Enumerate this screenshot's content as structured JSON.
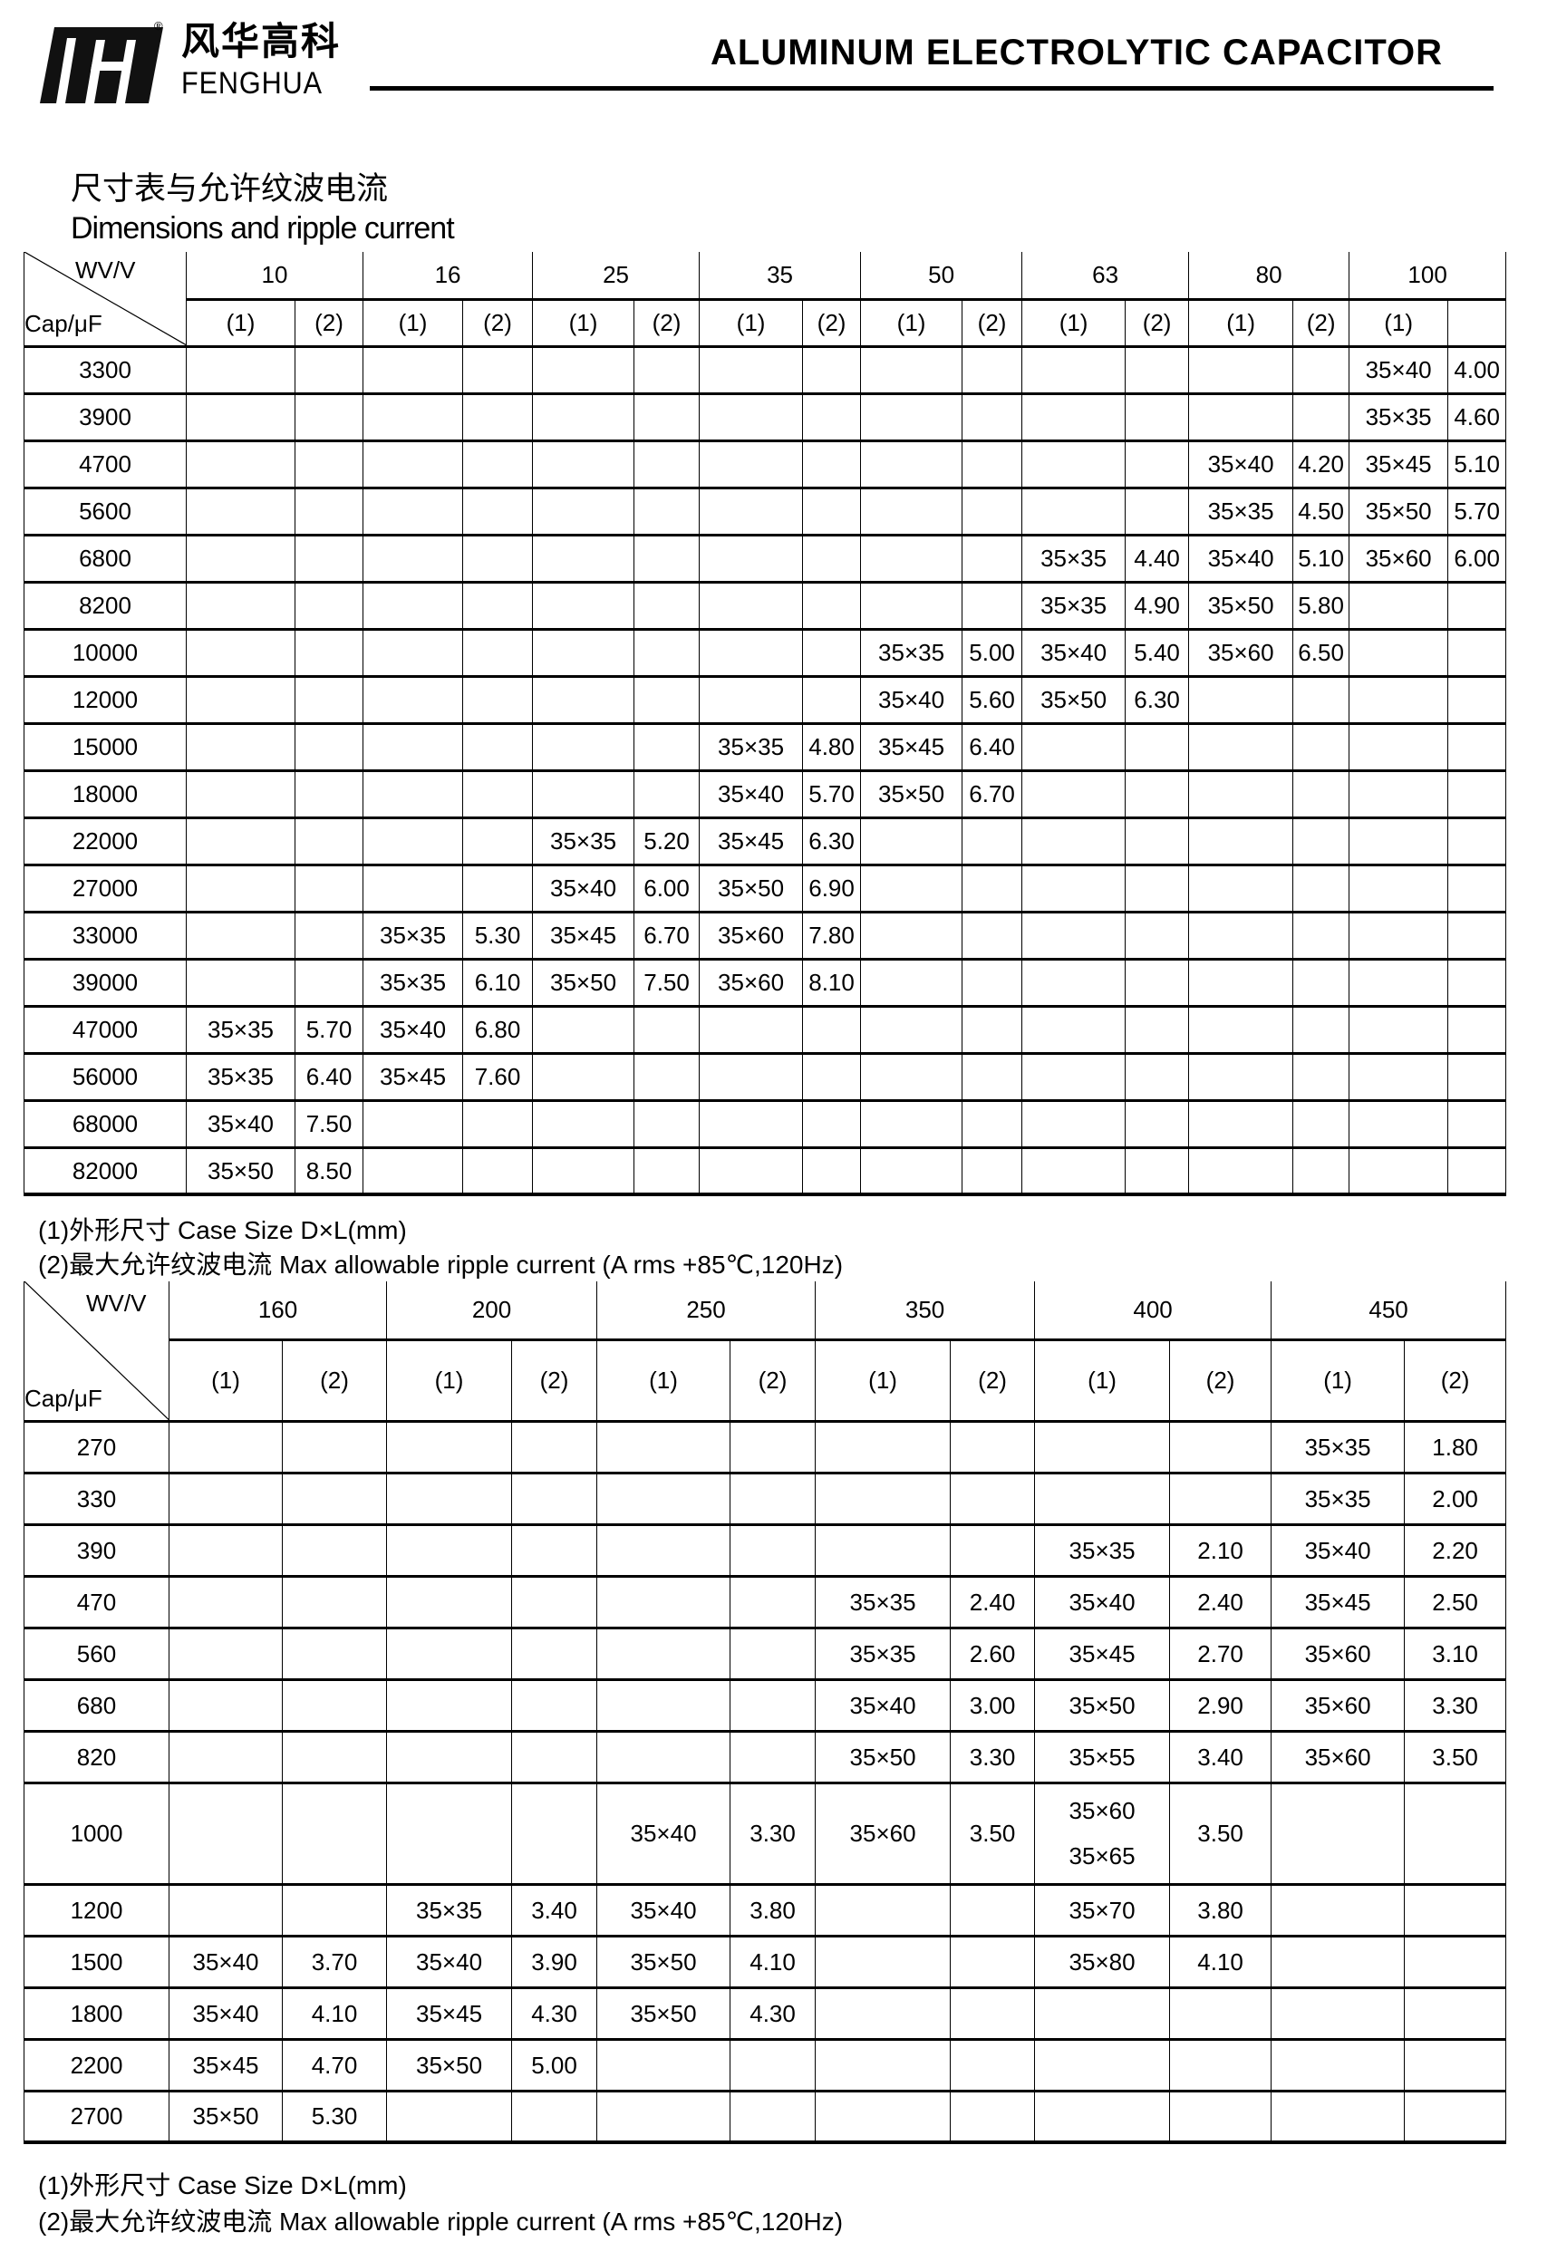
{
  "header": {
    "brand_cn": "风华高科",
    "brand_en": "FENGHUA",
    "registered_mark": "®",
    "title": "ALUMINUM ELECTROLYTIC CAPACITOR"
  },
  "section": {
    "title_cn": "尺寸表与允许纹波电流",
    "title_en": "Dimensions and ripple current"
  },
  "table1": {
    "corner_top": "WV/V",
    "corner_bottom": "Cap/μF",
    "voltages": [
      "10",
      "16",
      "25",
      "35",
      "50",
      "63",
      "80",
      "100"
    ],
    "subheaders": [
      "(1)",
      "(2)",
      "(1)",
      "(2)",
      "(1)",
      "(2)",
      "(1)",
      "(2)",
      "(1)",
      "(2)",
      "(1)",
      "(2)",
      "(1)",
      "(2)",
      "(1)",
      ""
    ],
    "rows": [
      {
        "cap": "3300",
        "cells": [
          "",
          "",
          "",
          "",
          "",
          "",
          "",
          "",
          "",
          "",
          "",
          "",
          "",
          "",
          "35×40",
          "4.00"
        ]
      },
      {
        "cap": "3900",
        "cells": [
          "",
          "",
          "",
          "",
          "",
          "",
          "",
          "",
          "",
          "",
          "",
          "",
          "",
          "",
          "35×35",
          "4.60"
        ]
      },
      {
        "cap": "4700",
        "cells": [
          "",
          "",
          "",
          "",
          "",
          "",
          "",
          "",
          "",
          "",
          "",
          "",
          "35×40",
          "4.20",
          "35×45",
          "5.10"
        ]
      },
      {
        "cap": "5600",
        "cells": [
          "",
          "",
          "",
          "",
          "",
          "",
          "",
          "",
          "",
          "",
          "",
          "",
          "35×35",
          "4.50",
          "35×50",
          "5.70"
        ]
      },
      {
        "cap": "6800",
        "cells": [
          "",
          "",
          "",
          "",
          "",
          "",
          "",
          "",
          "",
          "",
          "35×35",
          "4.40",
          "35×40",
          "5.10",
          "35×60",
          "6.00"
        ]
      },
      {
        "cap": "8200",
        "cells": [
          "",
          "",
          "",
          "",
          "",
          "",
          "",
          "",
          "",
          "",
          "35×35",
          "4.90",
          "35×50",
          "5.80",
          "",
          ""
        ]
      },
      {
        "cap": "10000",
        "cells": [
          "",
          "",
          "",
          "",
          "",
          "",
          "",
          "",
          "35×35",
          "5.00",
          "35×40",
          "5.40",
          "35×60",
          "6.50",
          "",
          ""
        ]
      },
      {
        "cap": "12000",
        "cells": [
          "",
          "",
          "",
          "",
          "",
          "",
          "",
          "",
          "35×40",
          "5.60",
          "35×50",
          "6.30",
          "",
          "",
          "",
          ""
        ]
      },
      {
        "cap": "15000",
        "cells": [
          "",
          "",
          "",
          "",
          "",
          "",
          "35×35",
          "4.80",
          "35×45",
          "6.40",
          "",
          "",
          "",
          "",
          "",
          ""
        ]
      },
      {
        "cap": "18000",
        "cells": [
          "",
          "",
          "",
          "",
          "",
          "",
          "35×40",
          "5.70",
          "35×50",
          "6.70",
          "",
          "",
          "",
          "",
          "",
          ""
        ]
      },
      {
        "cap": "22000",
        "cells": [
          "",
          "",
          "",
          "",
          "35×35",
          "5.20",
          "35×45",
          "6.30",
          "",
          "",
          "",
          "",
          "",
          "",
          "",
          ""
        ]
      },
      {
        "cap": "27000",
        "cells": [
          "",
          "",
          "",
          "",
          "35×40",
          "6.00",
          "35×50",
          "6.90",
          "",
          "",
          "",
          "",
          "",
          "",
          "",
          ""
        ]
      },
      {
        "cap": "33000",
        "cells": [
          "",
          "",
          "35×35",
          "5.30",
          "35×45",
          "6.70",
          "35×60",
          "7.80",
          "",
          "",
          "",
          "",
          "",
          "",
          "",
          ""
        ]
      },
      {
        "cap": "39000",
        "cells": [
          "",
          "",
          "35×35",
          "6.10",
          "35×50",
          "7.50",
          "35×60",
          "8.10",
          "",
          "",
          "",
          "",
          "",
          "",
          "",
          ""
        ]
      },
      {
        "cap": "47000",
        "cells": [
          "35×35",
          "5.70",
          "35×40",
          "6.80",
          "",
          "",
          "",
          "",
          "",
          "",
          "",
          "",
          "",
          "",
          "",
          ""
        ]
      },
      {
        "cap": "56000",
        "cells": [
          "35×35",
          "6.40",
          "35×45",
          "7.60",
          "",
          "",
          "",
          "",
          "",
          "",
          "",
          "",
          "",
          "",
          "",
          ""
        ]
      },
      {
        "cap": "68000",
        "cells": [
          "35×40",
          "7.50",
          "",
          "",
          "",
          "",
          "",
          "",
          "",
          "",
          "",
          "",
          "",
          "",
          "",
          ""
        ]
      },
      {
        "cap": "82000",
        "cells": [
          "35×50",
          "8.50",
          "",
          "",
          "",
          "",
          "",
          "",
          "",
          "",
          "",
          "",
          "",
          "",
          "",
          ""
        ]
      }
    ],
    "note1": "(1)外形尺寸   Case Size D×L(mm)",
    "note2": "(2)最大允许纹波电流  Max allowable ripple current    (A rms    +85℃,120Hz)"
  },
  "table2": {
    "corner_top": "WV/V",
    "corner_bottom": "Cap/μF",
    "voltages": [
      "160",
      "200",
      "250",
      "350",
      "400",
      "450"
    ],
    "subheaders": [
      "(1)",
      "(2)",
      "(1)",
      "(2)",
      "(1)",
      "(2)",
      "(1)",
      "(2)",
      "(1)",
      "(2)",
      "(1)",
      "(2)"
    ],
    "rows": [
      {
        "cap": "270",
        "cells": [
          [
            ""
          ],
          [
            ""
          ],
          [
            ""
          ],
          [
            ""
          ],
          [
            ""
          ],
          [
            ""
          ],
          [
            ""
          ],
          [
            ""
          ],
          [
            ""
          ],
          [
            ""
          ],
          [
            "35×35"
          ],
          [
            "1.80"
          ]
        ]
      },
      {
        "cap": "330",
        "cells": [
          [
            ""
          ],
          [
            ""
          ],
          [
            ""
          ],
          [
            ""
          ],
          [
            ""
          ],
          [
            ""
          ],
          [
            ""
          ],
          [
            ""
          ],
          [
            ""
          ],
          [
            ""
          ],
          [
            "35×35"
          ],
          [
            "2.00"
          ]
        ]
      },
      {
        "cap": "390",
        "cells": [
          [
            ""
          ],
          [
            ""
          ],
          [
            ""
          ],
          [
            ""
          ],
          [
            ""
          ],
          [
            ""
          ],
          [
            ""
          ],
          [
            ""
          ],
          [
            "35×35"
          ],
          [
            "2.10"
          ],
          [
            "35×40"
          ],
          [
            "2.20"
          ]
        ]
      },
      {
        "cap": "470",
        "cells": [
          [
            ""
          ],
          [
            ""
          ],
          [
            ""
          ],
          [
            ""
          ],
          [
            ""
          ],
          [
            ""
          ],
          [
            "35×35"
          ],
          [
            "2.40"
          ],
          [
            "35×40"
          ],
          [
            "2.40"
          ],
          [
            "35×45"
          ],
          [
            "2.50"
          ]
        ]
      },
      {
        "cap": "560",
        "cells": [
          [
            ""
          ],
          [
            ""
          ],
          [
            ""
          ],
          [
            ""
          ],
          [
            ""
          ],
          [
            ""
          ],
          [
            "35×35"
          ],
          [
            "2.60"
          ],
          [
            "35×45"
          ],
          [
            "2.70"
          ],
          [
            "35×60"
          ],
          [
            "3.10"
          ]
        ]
      },
      {
        "cap": "680",
        "cells": [
          [
            ""
          ],
          [
            ""
          ],
          [
            ""
          ],
          [
            ""
          ],
          [
            ""
          ],
          [
            ""
          ],
          [
            "35×40"
          ],
          [
            "3.00"
          ],
          [
            "35×50"
          ],
          [
            "2.90"
          ],
          [
            "35×60"
          ],
          [
            "3.30"
          ]
        ]
      },
      {
        "cap": "820",
        "cells": [
          [
            ""
          ],
          [
            ""
          ],
          [
            ""
          ],
          [
            ""
          ],
          [
            ""
          ],
          [
            ""
          ],
          [
            "35×50"
          ],
          [
            "3.30"
          ],
          [
            "35×55"
          ],
          [
            "3.40"
          ],
          [
            "35×60"
          ],
          [
            "3.50"
          ]
        ]
      },
      {
        "cap": "1000",
        "cells": [
          [
            ""
          ],
          [
            ""
          ],
          [
            ""
          ],
          [
            ""
          ],
          [
            "35×40"
          ],
          [
            "3.30"
          ],
          [
            "35×60"
          ],
          [
            "3.50"
          ],
          [
            "35×60",
            "35×65"
          ],
          [
            "3.50"
          ],
          [
            ""
          ],
          [
            ""
          ]
        ]
      },
      {
        "cap": "1200",
        "cells": [
          [
            ""
          ],
          [
            ""
          ],
          [
            "35×35"
          ],
          [
            "3.40"
          ],
          [
            "35×40"
          ],
          [
            "3.80"
          ],
          [
            ""
          ],
          [
            ""
          ],
          [
            "35×70"
          ],
          [
            "3.80"
          ],
          [
            ""
          ],
          [
            ""
          ]
        ]
      },
      {
        "cap": "1500",
        "cells": [
          [
            "35×40"
          ],
          [
            "3.70"
          ],
          [
            "35×40"
          ],
          [
            "3.90"
          ],
          [
            "35×50"
          ],
          [
            "4.10"
          ],
          [
            ""
          ],
          [
            ""
          ],
          [
            "35×80"
          ],
          [
            "4.10"
          ],
          [
            ""
          ],
          [
            ""
          ]
        ]
      },
      {
        "cap": "1800",
        "cells": [
          [
            "35×40"
          ],
          [
            "4.10"
          ],
          [
            "35×45"
          ],
          [
            "4.30"
          ],
          [
            "35×50"
          ],
          [
            "4.30"
          ],
          [
            ""
          ],
          [
            ""
          ],
          [
            ""
          ],
          [
            ""
          ],
          [
            ""
          ],
          [
            ""
          ]
        ]
      },
      {
        "cap": "2200",
        "cells": [
          [
            "35×45"
          ],
          [
            "4.70"
          ],
          [
            "35×50"
          ],
          [
            "5.00"
          ],
          [
            ""
          ],
          [
            ""
          ],
          [
            ""
          ],
          [
            ""
          ],
          [
            ""
          ],
          [
            ""
          ],
          [
            ""
          ],
          [
            ""
          ]
        ]
      },
      {
        "cap": "2700",
        "cells": [
          [
            "35×50"
          ],
          [
            "5.30"
          ],
          [
            ""
          ],
          [
            ""
          ],
          [
            ""
          ],
          [
            ""
          ],
          [
            ""
          ],
          [
            ""
          ],
          [
            ""
          ],
          [
            ""
          ],
          [
            ""
          ],
          [
            ""
          ]
        ]
      }
    ],
    "note1": "(1)外形尺寸   Case Size D×L(mm)",
    "note2": "(2)最大允许纹波电流  Max allowable ripple current    (A rms    +85℃,120Hz)"
  }
}
